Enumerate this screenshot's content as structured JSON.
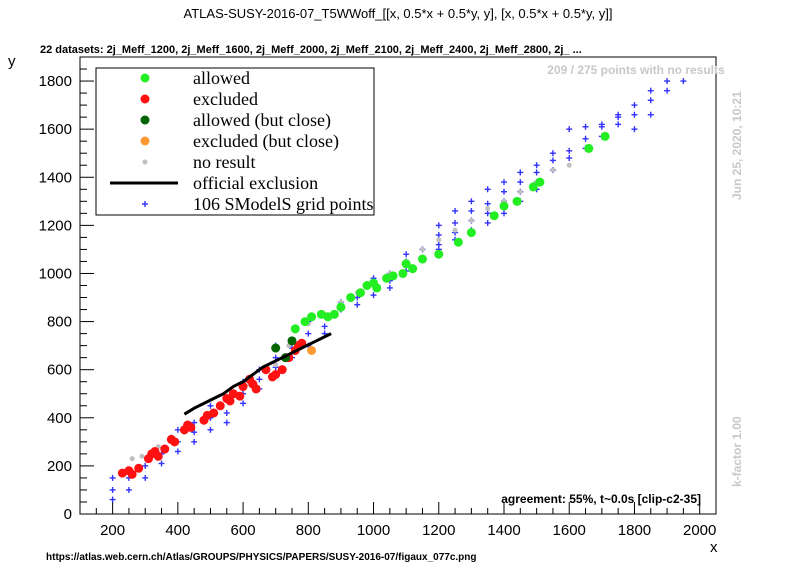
{
  "chart_data": {
    "type": "scatter",
    "title": "ATLAS-SUSY-2016-07_T5WWoff_[[x, 0.5*x + 0.5*y, y], [x, 0.5*x + 0.5*y, y]]",
    "subtitle": "22 datasets: 2j_Meff_1200, 2j_Meff_1600, 2j_Meff_2000, 2j_Meff_2100, 2j_Meff_2400, 2j_Meff_2800, 2j_ ...",
    "xlabel": "x",
    "ylabel": "y",
    "xlim": [
      100,
      2050
    ],
    "ylim": [
      0,
      1900
    ],
    "xticks": [
      200,
      400,
      600,
      800,
      1000,
      1200,
      1400,
      1600,
      1800,
      2000
    ],
    "yticks": [
      0,
      200,
      400,
      600,
      800,
      1000,
      1200,
      1400,
      1600,
      1800
    ],
    "legend_placement": "top-left",
    "grid": false,
    "annotations": {
      "no_results": "209 / 275 points with no results",
      "date": "Jun 25, 2020, 10:21",
      "kfactor": "k-factor 1.00",
      "agreement": "agreement: 55%, t~0.0s [clip-c2-35]",
      "url": "https://atlas.web.cern.ch/Atlas/GROUPS/PHYSICS/PAPERS/SUSY-2016-07/figaux_077c.png"
    },
    "series": [
      {
        "name": "allowed",
        "color": "#22ee22",
        "marker": "dot",
        "points": [
          [
            760,
            770
          ],
          [
            790,
            800
          ],
          [
            810,
            820
          ],
          [
            840,
            830
          ],
          [
            860,
            820
          ],
          [
            880,
            830
          ],
          [
            900,
            860
          ],
          [
            930,
            900
          ],
          [
            960,
            920
          ],
          [
            980,
            950
          ],
          [
            1000,
            960
          ],
          [
            1010,
            940
          ],
          [
            1040,
            980
          ],
          [
            1060,
            990
          ],
          [
            1090,
            1000
          ],
          [
            1100,
            1040
          ],
          [
            1120,
            1020
          ],
          [
            1150,
            1060
          ],
          [
            1200,
            1080
          ],
          [
            1260,
            1130
          ],
          [
            1300,
            1170
          ],
          [
            1370,
            1240
          ],
          [
            1400,
            1280
          ],
          [
            1440,
            1300
          ],
          [
            1490,
            1360
          ],
          [
            1510,
            1380
          ],
          [
            1660,
            1520
          ],
          [
            1710,
            1570
          ]
        ]
      },
      {
        "name": "excluded",
        "color": "#ff1111",
        "marker": "dot",
        "points": [
          [
            230,
            170
          ],
          [
            250,
            180
          ],
          [
            260,
            165
          ],
          [
            280,
            190
          ],
          [
            310,
            230
          ],
          [
            320,
            250
          ],
          [
            330,
            260
          ],
          [
            340,
            240
          ],
          [
            360,
            270
          ],
          [
            380,
            310
          ],
          [
            390,
            300
          ],
          [
            420,
            350
          ],
          [
            430,
            370
          ],
          [
            440,
            360
          ],
          [
            480,
            390
          ],
          [
            490,
            410
          ],
          [
            510,
            420
          ],
          [
            530,
            450
          ],
          [
            550,
            480
          ],
          [
            560,
            470
          ],
          [
            570,
            500
          ],
          [
            590,
            490
          ],
          [
            600,
            530
          ],
          [
            620,
            560
          ],
          [
            630,
            540
          ],
          [
            640,
            520
          ],
          [
            670,
            600
          ],
          [
            690,
            570
          ],
          [
            700,
            580
          ],
          [
            720,
            600
          ],
          [
            740,
            650
          ],
          [
            760,
            680
          ],
          [
            770,
            700
          ],
          [
            780,
            710
          ]
        ]
      },
      {
        "name": "allowed (but close)",
        "color": "#006400",
        "marker": "dot",
        "points": [
          [
            700,
            690
          ],
          [
            730,
            650
          ],
          [
            750,
            720
          ]
        ]
      },
      {
        "name": "excluded (but close)",
        "color": "#ff9933",
        "marker": "dot",
        "points": [
          [
            810,
            680
          ]
        ]
      },
      {
        "name": "no result",
        "color": "#c0c0c0",
        "marker": "small-dot",
        "points": [
          [
            260,
            230
          ],
          [
            290,
            240
          ],
          [
            340,
            280
          ],
          [
            380,
            320
          ],
          [
            420,
            340
          ],
          [
            500,
            420
          ],
          [
            560,
            490
          ],
          [
            620,
            540
          ],
          [
            700,
            620
          ],
          [
            740,
            700
          ],
          [
            760,
            760
          ],
          [
            800,
            790
          ],
          [
            850,
            830
          ],
          [
            900,
            880
          ],
          [
            950,
            920
          ],
          [
            1000,
            960
          ],
          [
            1050,
            1000
          ],
          [
            1100,
            1050
          ],
          [
            1150,
            1100
          ],
          [
            1200,
            1140
          ],
          [
            1250,
            1180
          ],
          [
            1300,
            1220
          ],
          [
            1350,
            1270
          ],
          [
            1400,
            1300
          ],
          [
            1450,
            1340
          ],
          [
            1500,
            1380
          ],
          [
            1550,
            1430
          ],
          [
            1600,
            1450
          ]
        ]
      },
      {
        "name": "official exclusion",
        "color": "#000000",
        "marker": "line",
        "points": [
          [
            420,
            415
          ],
          [
            450,
            440
          ],
          [
            480,
            460
          ],
          [
            510,
            480
          ],
          [
            540,
            500
          ],
          [
            570,
            530
          ],
          [
            600,
            550
          ],
          [
            630,
            580
          ],
          [
            660,
            610
          ],
          [
            690,
            630
          ],
          [
            720,
            650
          ],
          [
            750,
            670
          ],
          [
            780,
            690
          ],
          [
            810,
            710
          ],
          [
            840,
            730
          ],
          [
            870,
            750
          ]
        ]
      },
      {
        "name": "106 SModelS grid points",
        "color": "#3333ff",
        "marker": "plus",
        "points": [
          [
            200,
            150
          ],
          [
            200,
            100
          ],
          [
            200,
            60
          ],
          [
            250,
            150
          ],
          [
            250,
            100
          ],
          [
            300,
            200
          ],
          [
            300,
            150
          ],
          [
            350,
            250
          ],
          [
            350,
            210
          ],
          [
            400,
            350
          ],
          [
            400,
            300
          ],
          [
            400,
            260
          ],
          [
            450,
            380
          ],
          [
            450,
            340
          ],
          [
            450,
            300
          ],
          [
            500,
            450
          ],
          [
            500,
            400
          ],
          [
            500,
            350
          ],
          [
            550,
            480
          ],
          [
            550,
            420
          ],
          [
            550,
            380
          ],
          [
            600,
            550
          ],
          [
            600,
            500
          ],
          [
            600,
            460
          ],
          [
            650,
            600
          ],
          [
            650,
            560
          ],
          [
            650,
            520
          ],
          [
            700,
            700
          ],
          [
            700,
            650
          ],
          [
            700,
            610
          ],
          [
            750,
            720
          ],
          [
            750,
            690
          ],
          [
            750,
            650
          ],
          [
            800,
            800
          ],
          [
            800,
            750
          ],
          [
            800,
            700
          ],
          [
            850,
            780
          ],
          [
            850,
            750
          ],
          [
            900,
            880
          ],
          [
            900,
            850
          ],
          [
            950,
            900
          ],
          [
            950,
            870
          ],
          [
            1000,
            980
          ],
          [
            1000,
            950
          ],
          [
            1000,
            910
          ],
          [
            1050,
            1000
          ],
          [
            1050,
            970
          ],
          [
            1050,
            940
          ],
          [
            1100,
            1080
          ],
          [
            1100,
            1050
          ],
          [
            1100,
            1010
          ],
          [
            1150,
            1100
          ],
          [
            1150,
            1060
          ],
          [
            1200,
            1160
          ],
          [
            1200,
            1120
          ],
          [
            1250,
            1210
          ],
          [
            1250,
            1170
          ],
          [
            1300,
            1260
          ],
          [
            1300,
            1220
          ],
          [
            1350,
            1290
          ],
          [
            1350,
            1250
          ],
          [
            1400,
            1340
          ],
          [
            1400,
            1300
          ],
          [
            1450,
            1380
          ],
          [
            1450,
            1340
          ],
          [
            1500,
            1420
          ],
          [
            1500,
            1380
          ],
          [
            1550,
            1470
          ],
          [
            1550,
            1430
          ],
          [
            1600,
            1510
          ],
          [
            1600,
            1480
          ],
          [
            1650,
            1560
          ],
          [
            1650,
            1520
          ],
          [
            1700,
            1610
          ],
          [
            1700,
            1570
          ],
          [
            1750,
            1650
          ],
          [
            1750,
            1620
          ],
          [
            1800,
            1700
          ],
          [
            1800,
            1660
          ],
          [
            1850,
            1760
          ],
          [
            1850,
            1720
          ],
          [
            1900,
            1760
          ],
          [
            1950,
            1800
          ],
          [
            1600,
            1600
          ],
          [
            1650,
            1610
          ],
          [
            1700,
            1620
          ],
          [
            1750,
            1660
          ],
          [
            1800,
            1600
          ],
          [
            1850,
            1660
          ],
          [
            1900,
            1800
          ],
          [
            1200,
            1200
          ],
          [
            1250,
            1260
          ],
          [
            1300,
            1300
          ],
          [
            1350,
            1350
          ],
          [
            1400,
            1380
          ],
          [
            1450,
            1420
          ],
          [
            1500,
            1450
          ],
          [
            1550,
            1500
          ],
          [
            1500,
            1350
          ],
          [
            1450,
            1300
          ],
          [
            1400,
            1250
          ],
          [
            1350,
            1210
          ],
          [
            1300,
            1180
          ],
          [
            1250,
            1140
          ],
          [
            1200,
            1100
          ],
          [
            1150,
            1060
          ]
        ]
      }
    ]
  }
}
